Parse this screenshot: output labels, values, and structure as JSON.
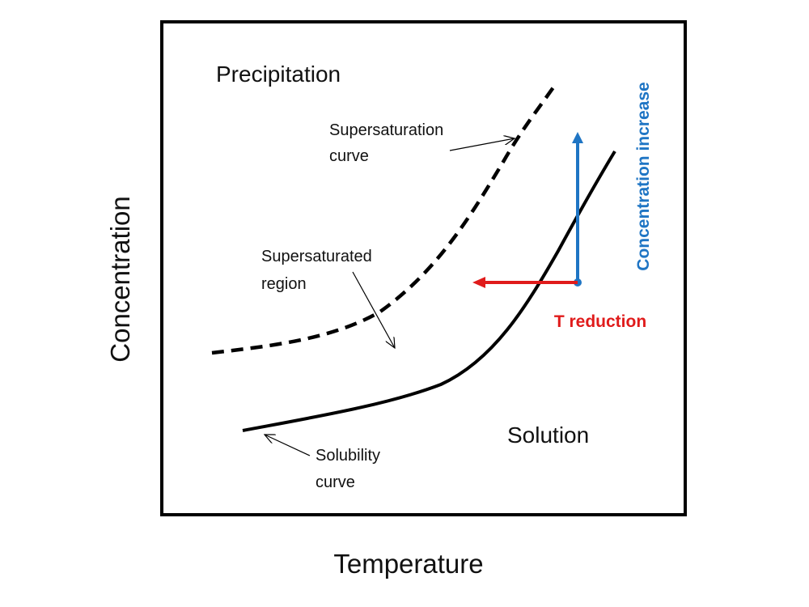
{
  "diagram": {
    "x_axis_label": "Temperature",
    "y_axis_label": "Concentration",
    "regions": {
      "precipitation": "Precipitation",
      "solution": "Solution"
    },
    "annotations": {
      "supersaturation_curve": [
        "Supersaturation",
        "curve"
      ],
      "supersaturated_region": [
        "Supersaturated",
        "region"
      ],
      "solubility_curve": [
        "Solubility",
        "curve"
      ],
      "concentration_increase": "Concentration increase",
      "t_reduction": "T reduction"
    },
    "colors": {
      "frame": "#000000",
      "curves": "#000000",
      "concentration_arrow": "#1f75c4",
      "temperature_arrow": "#e01b1b"
    }
  }
}
